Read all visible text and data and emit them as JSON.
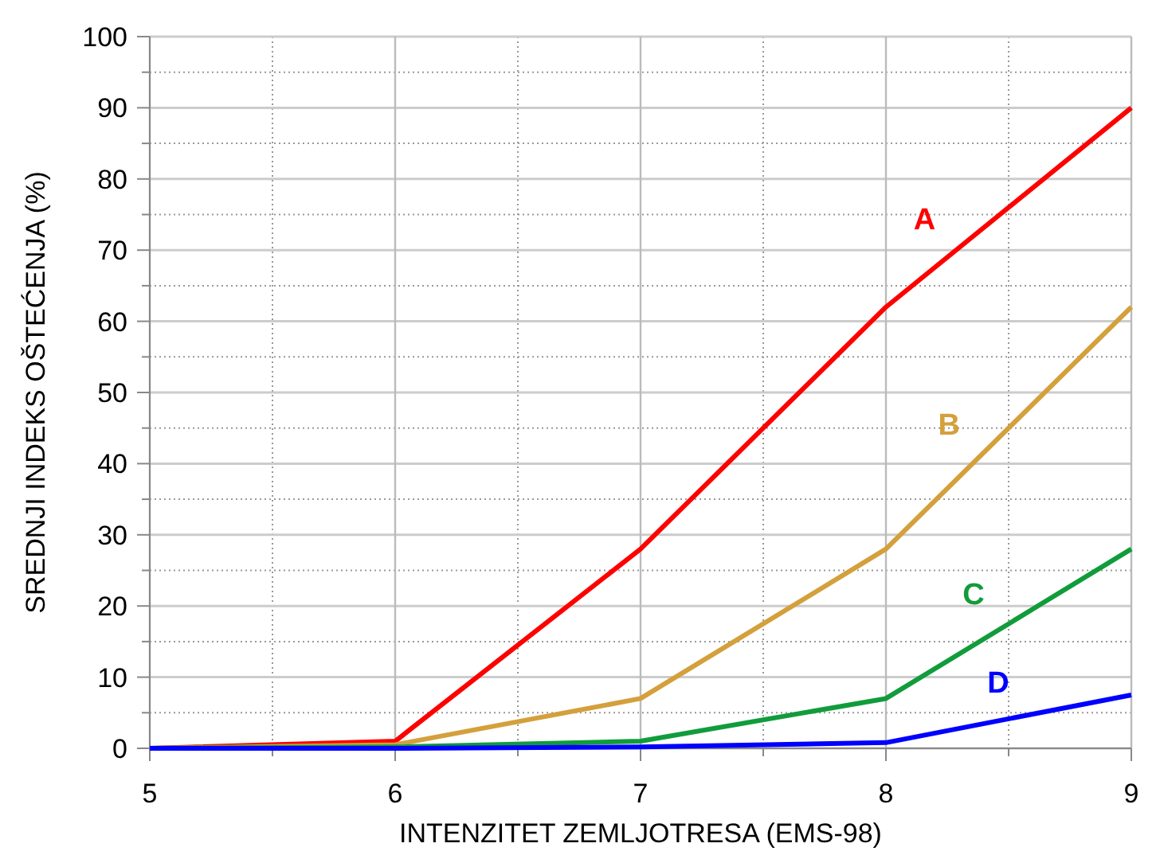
{
  "chart_data": {
    "type": "line",
    "xlabel": "INTENZITET ZEMLJOTRESA (EMS-98)",
    "ylabel": "SREDNJI INDEKS OŠTEĆENJA (%)",
    "x": [
      5,
      6,
      7,
      8,
      9
    ],
    "xlim": [
      5,
      9
    ],
    "xticks": [
      5,
      6,
      7,
      8,
      9
    ],
    "ylim": [
      0,
      100
    ],
    "yticks": [
      0,
      10,
      20,
      30,
      40,
      50,
      60,
      70,
      80,
      90,
      100
    ],
    "grid": true,
    "legend": false,
    "marker": "none",
    "line_style": "solid",
    "series": [
      {
        "name": "A",
        "color": "#ff0000",
        "values": [
          0,
          1,
          28,
          62,
          90
        ]
      },
      {
        "name": "B",
        "color": "#d4a03c",
        "values": [
          0,
          0.5,
          7,
          28,
          62
        ]
      },
      {
        "name": "C",
        "color": "#119c3c",
        "values": [
          0,
          0.2,
          1,
          7,
          28
        ]
      },
      {
        "name": "D",
        "color": "#0000ff",
        "values": [
          0,
          0,
          0.2,
          0.8,
          7.5
        ]
      }
    ]
  }
}
